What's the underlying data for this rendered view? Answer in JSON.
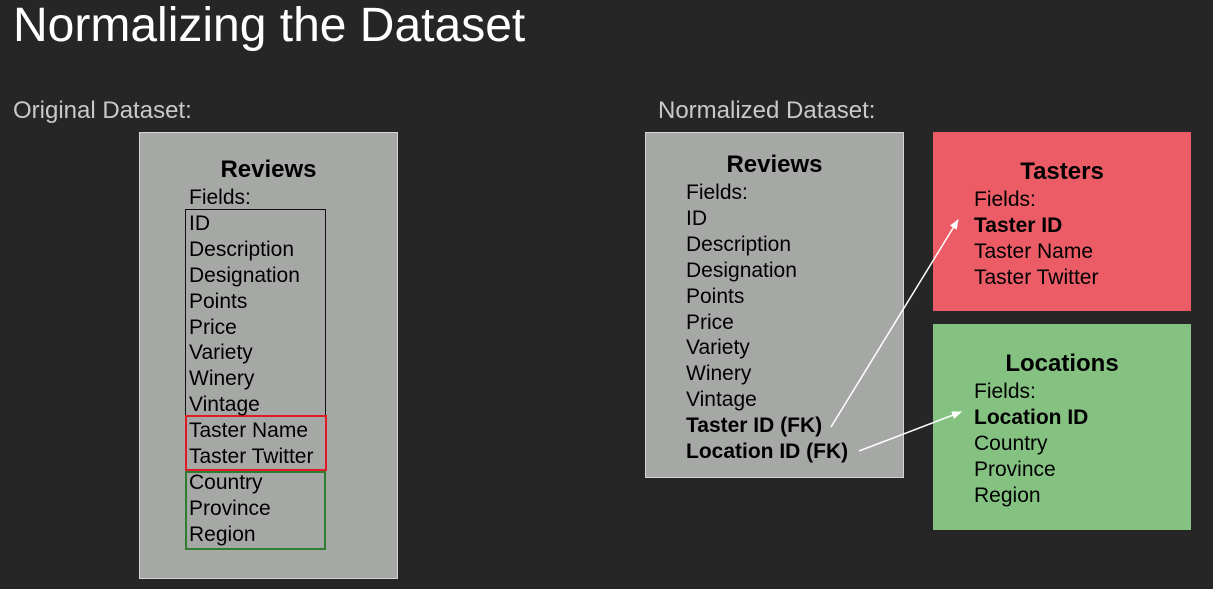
{
  "title": "Normalizing the Dataset",
  "original": {
    "heading": "Original Dataset:",
    "reviews": {
      "title": "Reviews",
      "fields_label": "Fields:",
      "fields": [
        "ID",
        "Description",
        "Designation",
        "Points",
        "Price",
        "Variety",
        "Winery",
        "Vintage"
      ],
      "taster_fields": [
        "Taster Name",
        "Taster Twitter"
      ],
      "location_fields": [
        "Country",
        "Province",
        "Region"
      ]
    }
  },
  "normalized": {
    "heading": "Normalized Dataset:",
    "reviews": {
      "title": "Reviews",
      "fields_label": "Fields:",
      "fields": [
        "ID",
        "Description",
        "Designation",
        "Points",
        "Price",
        "Variety",
        "Winery",
        "Vintage"
      ],
      "foreign_keys": [
        "Taster ID (FK)",
        "Location ID (FK)"
      ]
    },
    "tasters": {
      "title": "Tasters",
      "fields_label": "Fields:",
      "key": "Taster ID",
      "fields": [
        "Taster Name",
        "Taster Twitter"
      ],
      "color": "#eb5c66"
    },
    "locations": {
      "title": "Locations",
      "fields_label": "Fields:",
      "key": "Location ID",
      "fields": [
        "Country",
        "Province",
        "Region"
      ],
      "color": "#85c282"
    }
  },
  "colors": {
    "background": "#262626",
    "table_gray": "#a6a8a6",
    "taster_outline": "#e01b24",
    "location_outline": "#2e7d32",
    "arrow": "#ffffff"
  }
}
